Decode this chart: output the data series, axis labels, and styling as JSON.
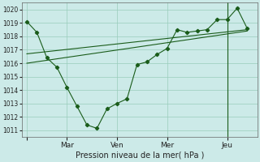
{
  "bg_color": "#cceae8",
  "grid_color": "#99ccbb",
  "line_color": "#1a5c1a",
  "title": "Pression niveau de la mer( hPa )",
  "x_labels": [
    "Mar",
    "Ven",
    "Mer",
    "Jeu"
  ],
  "ylim": [
    1010.5,
    1020.5
  ],
  "yticks": [
    1011,
    1012,
    1013,
    1014,
    1015,
    1016,
    1017,
    1018,
    1019,
    1020
  ],
  "series1_x": [
    0,
    1,
    2,
    3,
    4,
    5,
    6,
    7,
    8,
    9,
    10,
    11,
    12,
    13,
    14,
    15,
    16,
    17,
    18,
    19,
    20,
    21,
    22
  ],
  "series1_y": [
    1019.1,
    1018.3,
    1016.4,
    1015.7,
    1014.2,
    1012.8,
    1011.4,
    1011.15,
    1012.6,
    1013.0,
    1013.35,
    1015.9,
    1016.1,
    1016.65,
    1017.1,
    1018.5,
    1018.3,
    1018.4,
    1018.5,
    1019.25,
    1019.25,
    1020.1,
    1018.6
  ],
  "series2_x": [
    0,
    22
  ],
  "series2_y": [
    1016.7,
    1018.5
  ],
  "series3_x": [
    0,
    22
  ],
  "series3_y": [
    1016.0,
    1018.4
  ],
  "xlim": [
    -0.5,
    23
  ],
  "x_tick_positions": [
    0,
    4,
    9,
    14,
    20
  ],
  "x_tick_labels": [
    "",
    "Mar",
    "Ven",
    "Mer",
    "Jeu"
  ],
  "vline_x": 20
}
